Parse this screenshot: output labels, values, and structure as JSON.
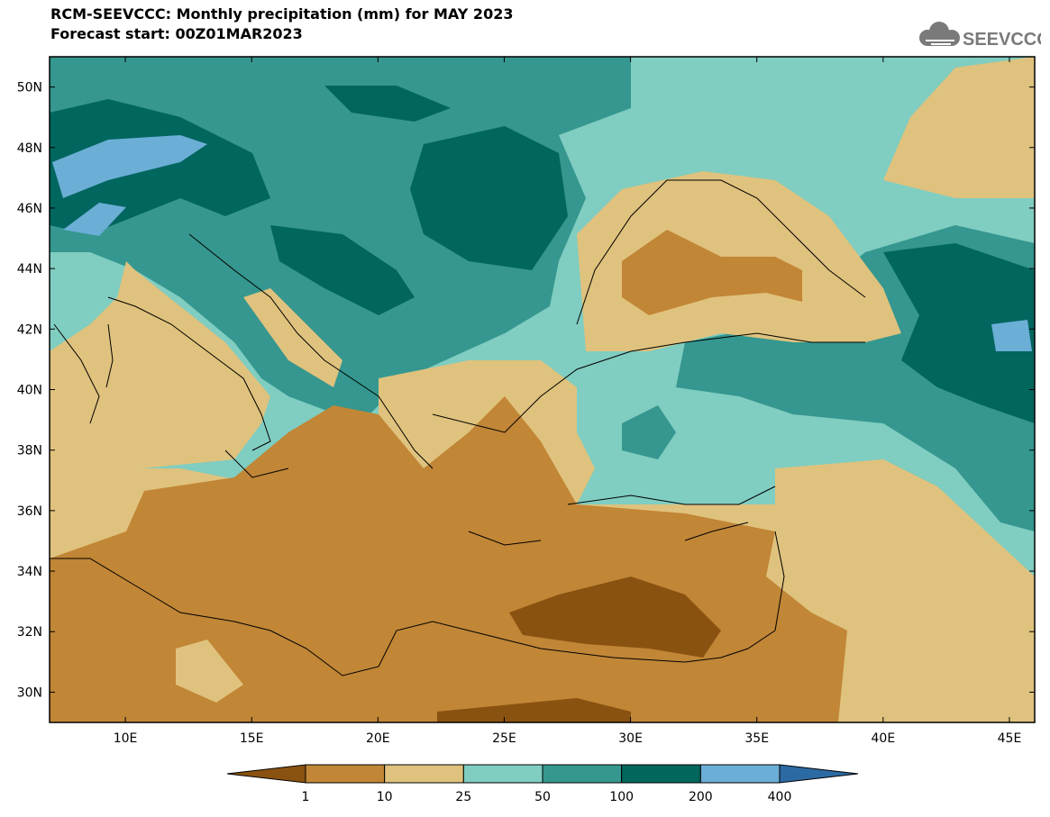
{
  "header": {
    "title": "RCM-SEEVCCC: Monthly precipitation (mm) for MAY 2023",
    "forecast": "Forecast start: 00Z01MAR2023"
  },
  "logo": {
    "text": "SEEVCCC"
  },
  "map": {
    "lon_range": [
      7,
      46
    ],
    "lat_range": [
      29,
      51
    ],
    "lon_ticks": [
      10,
      15,
      20,
      25,
      30,
      35,
      40,
      45
    ],
    "lat_ticks": [
      30,
      32,
      34,
      36,
      38,
      40,
      42,
      44,
      46,
      48,
      50
    ],
    "lon_labels": [
      "10E",
      "15E",
      "20E",
      "25E",
      "30E",
      "35E",
      "40E",
      "45E"
    ],
    "lat_labels": [
      "30N",
      "32N",
      "34N",
      "36N",
      "38N",
      "40N",
      "42N",
      "44N",
      "46N",
      "48N",
      "50N"
    ]
  },
  "legend": {
    "colors": [
      "#8a5210",
      "#c18636",
      "#dfc27d",
      "#80cdc1",
      "#35978f",
      "#01665e",
      "#6baed6",
      "#2c6aa3"
    ],
    "labels": [
      "1",
      "10",
      "25",
      "50",
      "100",
      "200",
      "400"
    ]
  }
}
